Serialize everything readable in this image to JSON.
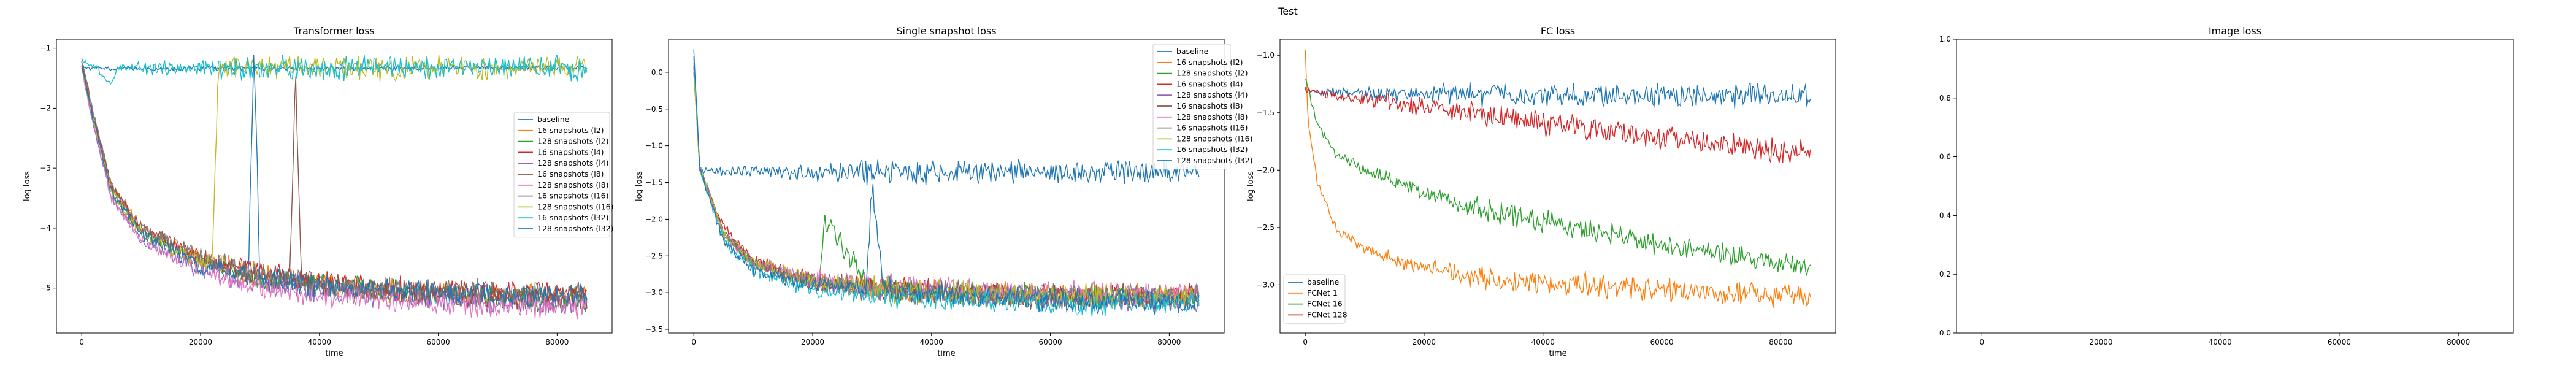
{
  "suptitle": "Test",
  "colors": {
    "blue": "#1f77b4",
    "orange": "#ff7f0e",
    "green": "#2ca02c",
    "red": "#d62728",
    "purple": "#9467bd",
    "brown": "#8c564b",
    "pink": "#e377c2",
    "gray": "#7f7f7f",
    "olive": "#bcbd22",
    "cyan": "#17becf"
  },
  "chart_data": [
    {
      "type": "line",
      "title": "Transformer loss",
      "xlabel": "time",
      "ylabel": "log loss",
      "xlim": [
        -4250,
        89250
      ],
      "ylim": [
        -5.75,
        -0.85
      ],
      "xticks": [
        0,
        20000,
        40000,
        60000,
        80000
      ],
      "yticks": [
        -1,
        -2,
        -3,
        -4,
        -5
      ],
      "legend_position": "center-right",
      "series": [
        {
          "name": "baseline",
          "color": "#1f77b4",
          "x": [
            0,
            1000,
            5000,
            20000,
            40000,
            60000,
            85000
          ],
          "y": [
            -1.3,
            -1.33,
            -1.34,
            -1.33,
            -1.34,
            -1.33,
            -1.33
          ]
        },
        {
          "name": "16 snapshots (l2)",
          "color": "#ff7f0e",
          "x": [
            0,
            2000,
            5000,
            10000,
            20000,
            30000,
            45000,
            60000,
            85000
          ],
          "y": [
            -1.2,
            -2.1,
            -3.3,
            -4.0,
            -4.5,
            -4.8,
            -5.0,
            -5.1,
            -5.15
          ]
        },
        {
          "name": "128 snapshots (l2)",
          "color": "#2ca02c",
          "x": [
            0,
            2000,
            5000,
            10000,
            20000,
            30000,
            45000,
            60000,
            85000
          ],
          "y": [
            -1.3,
            -2.2,
            -3.4,
            -4.1,
            -4.6,
            -4.85,
            -5.0,
            -5.1,
            -5.2
          ]
        },
        {
          "name": "16 snapshots (l4)",
          "color": "#d62728",
          "x": [
            0,
            2000,
            5000,
            10000,
            20000,
            30000,
            45000,
            60000,
            85000
          ],
          "y": [
            -1.2,
            -2.1,
            -3.3,
            -4.0,
            -4.5,
            -4.75,
            -4.95,
            -5.05,
            -5.1
          ]
        },
        {
          "name": "128 snapshots (l4)",
          "color": "#9467bd",
          "x": [
            0,
            2000,
            5000,
            10000,
            20000,
            30000,
            45000,
            60000,
            85000
          ],
          "y": [
            -1.3,
            -2.3,
            -3.5,
            -4.2,
            -4.7,
            -4.95,
            -5.1,
            -5.2,
            -5.3
          ]
        },
        {
          "name": "16 snapshots (l8)",
          "color": "#8c564b",
          "x": [
            0,
            2000,
            5000,
            10000,
            20000,
            30000,
            35000,
            36000,
            37000,
            45000,
            60000,
            85000
          ],
          "y": [
            -1.2,
            -2.2,
            -3.3,
            -4.0,
            -4.5,
            -4.8,
            -4.85,
            -1.45,
            -4.9,
            -5.0,
            -5.1,
            -5.15
          ]
        },
        {
          "name": "128 snapshots (l8)",
          "color": "#e377c2",
          "x": [
            0,
            2000,
            5000,
            10000,
            20000,
            30000,
            45000,
            60000,
            85000
          ],
          "y": [
            -1.3,
            -2.3,
            -3.5,
            -4.2,
            -4.7,
            -5.0,
            -5.15,
            -5.25,
            -5.35
          ]
        },
        {
          "name": "16 snapshots (l16)",
          "color": "#7f7f7f",
          "x": [
            0,
            2000,
            5000,
            10000,
            20000,
            30000,
            45000,
            60000,
            85000
          ],
          "y": [
            -1.2,
            -2.1,
            -3.3,
            -4.0,
            -4.5,
            -4.8,
            -5.0,
            -5.05,
            -5.1
          ]
        },
        {
          "name": "128 snapshots (l16)",
          "color": "#bcbd22",
          "x": [
            0,
            2000,
            5000,
            10000,
            20000,
            22000,
            23000,
            30000,
            45000,
            60000,
            85000
          ],
          "y": [
            -1.3,
            -2.2,
            -3.4,
            -4.1,
            -4.55,
            -4.6,
            -1.3,
            -1.32,
            -1.33,
            -1.34,
            -1.33
          ]
        },
        {
          "name": "16 snapshots (l32)",
          "color": "#17becf",
          "x": [
            0,
            2000,
            5000,
            6000,
            10000,
            20000,
            40000,
            60000,
            85000
          ],
          "y": [
            -1.2,
            -1.3,
            -1.6,
            -1.33,
            -1.33,
            -1.34,
            -1.33,
            -1.34,
            -1.33
          ]
        },
        {
          "name": "128 snapshots (l32)",
          "color": "#1f77b4",
          "x": [
            0,
            2000,
            5000,
            10000,
            20000,
            28000,
            29000,
            30000,
            45000,
            60000,
            85000
          ],
          "y": [
            -1.3,
            -2.2,
            -3.4,
            -4.1,
            -4.6,
            -4.8,
            -1.0,
            -4.85,
            -5.0,
            -5.1,
            -5.1
          ]
        }
      ]
    },
    {
      "type": "line",
      "title": "Single snapshot loss",
      "xlabel": "time",
      "ylabel": "log loss",
      "xlim": [
        -4250,
        89250
      ],
      "ylim": [
        -3.55,
        0.45
      ],
      "xticks": [
        0,
        20000,
        40000,
        60000,
        80000
      ],
      "yticks": [
        0.0,
        -0.5,
        -1.0,
        -1.5,
        -2.0,
        -2.5,
        -3.0,
        -3.5
      ],
      "legend_position": "upper-right",
      "series": [
        {
          "name": "baseline",
          "color": "#1f77b4",
          "x": [
            0,
            1000,
            5000,
            20000,
            40000,
            60000,
            85000
          ],
          "y": [
            0.2,
            -1.35,
            -1.35,
            -1.36,
            -1.35,
            -1.36,
            -1.35
          ]
        },
        {
          "name": "16 snapshots (l2)",
          "color": "#ff7f0e",
          "x": [
            0,
            1000,
            5000,
            10000,
            20000,
            30000,
            45000,
            60000,
            85000
          ],
          "y": [
            0.1,
            -1.3,
            -2.2,
            -2.6,
            -2.85,
            -2.95,
            -3.0,
            -3.05,
            -3.05
          ]
        },
        {
          "name": "128 snapshots (l2)",
          "color": "#2ca02c",
          "x": [
            0,
            1000,
            5000,
            10000,
            20000,
            21000,
            22000,
            30000,
            45000,
            60000,
            85000
          ],
          "y": [
            0.0,
            -1.3,
            -2.2,
            -2.6,
            -2.85,
            -2.9,
            -2.0,
            -2.95,
            -3.0,
            -3.05,
            -3.05
          ]
        },
        {
          "name": "16 snapshots (l4)",
          "color": "#d62728",
          "x": [
            0,
            1000,
            5000,
            10000,
            20000,
            30000,
            45000,
            60000,
            85000
          ],
          "y": [
            0.1,
            -1.3,
            -2.1,
            -2.55,
            -2.85,
            -2.95,
            -3.0,
            -3.05,
            -3.05
          ]
        },
        {
          "name": "128 snapshots (l4)",
          "color": "#9467bd",
          "x": [
            0,
            1000,
            5000,
            10000,
            20000,
            30000,
            45000,
            60000,
            85000
          ],
          "y": [
            0.0,
            -1.3,
            -2.2,
            -2.6,
            -2.85,
            -2.95,
            -3.0,
            -3.05,
            -3.1
          ]
        },
        {
          "name": "16 snapshots (l8)",
          "color": "#8c564b",
          "x": [
            0,
            1000,
            5000,
            10000,
            20000,
            30000,
            45000,
            60000,
            85000
          ],
          "y": [
            0.1,
            -1.3,
            -2.2,
            -2.6,
            -2.85,
            -2.95,
            -3.0,
            -3.05,
            -3.05
          ]
        },
        {
          "name": "128 snapshots (l8)",
          "color": "#e377c2",
          "x": [
            0,
            1000,
            5000,
            10000,
            20000,
            30000,
            45000,
            60000,
            85000
          ],
          "y": [
            0.0,
            -1.3,
            -2.2,
            -2.6,
            -2.8,
            -2.9,
            -2.95,
            -3.0,
            -3.0
          ]
        },
        {
          "name": "16 snapshots (l16)",
          "color": "#7f7f7f",
          "x": [
            0,
            1000,
            5000,
            10000,
            20000,
            30000,
            45000,
            60000,
            85000
          ],
          "y": [
            0.1,
            -1.3,
            -2.2,
            -2.6,
            -2.85,
            -2.95,
            -3.0,
            -3.05,
            -3.05
          ]
        },
        {
          "name": "128 snapshots (l16)",
          "color": "#bcbd22",
          "x": [
            0,
            1000,
            5000,
            10000,
            20000,
            30000,
            45000,
            60000,
            85000
          ],
          "y": [
            0.0,
            -1.3,
            -2.2,
            -2.6,
            -2.85,
            -2.95,
            -3.0,
            -3.05,
            -3.05
          ]
        },
        {
          "name": "16 snapshots (l32)",
          "color": "#17becf",
          "x": [
            0,
            1000,
            5000,
            10000,
            20000,
            30000,
            45000,
            60000,
            85000
          ],
          "y": [
            0.2,
            -1.3,
            -2.3,
            -2.7,
            -2.95,
            -3.05,
            -3.1,
            -3.15,
            -3.15
          ]
        },
        {
          "name": "128 snapshots (l32)",
          "color": "#1f77b4",
          "x": [
            0,
            1000,
            5000,
            10000,
            20000,
            29000,
            30000,
            32000,
            45000,
            60000,
            85000
          ],
          "y": [
            0.3,
            -1.3,
            -2.3,
            -2.7,
            -2.9,
            -2.95,
            -1.55,
            -2.95,
            -3.05,
            -3.1,
            -3.15
          ]
        }
      ]
    },
    {
      "type": "line",
      "title": "FC loss",
      "xlabel": "time",
      "ylabel": "log loss",
      "xlim": [
        -4250,
        89250
      ],
      "ylim": [
        -3.42,
        -0.86
      ],
      "xticks": [
        0,
        20000,
        40000,
        60000,
        80000
      ],
      "yticks": [
        -1.0,
        -1.5,
        -2.0,
        -2.5,
        -3.0
      ],
      "legend_position": "lower-left",
      "series": [
        {
          "name": "baseline",
          "color": "#1f77b4",
          "x": [
            0,
            2000,
            10000,
            20000,
            40000,
            60000,
            85000
          ],
          "y": [
            -1.3,
            -1.32,
            -1.33,
            -1.34,
            -1.35,
            -1.35,
            -1.35
          ]
        },
        {
          "name": "FCNet 1",
          "color": "#ff7f0e",
          "x": [
            0,
            500,
            2000,
            5000,
            10000,
            20000,
            30000,
            45000,
            60000,
            85000
          ],
          "y": [
            -0.95,
            -1.6,
            -2.1,
            -2.5,
            -2.7,
            -2.85,
            -2.95,
            -3.0,
            -3.05,
            -3.1
          ]
        },
        {
          "name": "FCNet 16",
          "color": "#2ca02c",
          "x": [
            0,
            2000,
            5000,
            10000,
            20000,
            30000,
            45000,
            60000,
            85000
          ],
          "y": [
            -1.2,
            -1.6,
            -1.85,
            -2.0,
            -2.2,
            -2.35,
            -2.5,
            -2.65,
            -2.85
          ]
        },
        {
          "name": "FCNet 128",
          "color": "#d62728",
          "x": [
            0,
            2000,
            5000,
            10000,
            20000,
            30000,
            45000,
            60000,
            85000
          ],
          "y": [
            -1.3,
            -1.32,
            -1.35,
            -1.38,
            -1.45,
            -1.52,
            -1.62,
            -1.72,
            -1.85
          ]
        }
      ]
    },
    {
      "type": "line",
      "title": "Image loss",
      "xlabel": "",
      "ylabel": "",
      "xlim": [
        -4250,
        89250
      ],
      "ylim": [
        0.0,
        1.0
      ],
      "xticks": [
        0,
        20000,
        40000,
        60000,
        80000
      ],
      "yticks": [
        0.0,
        0.2,
        0.4,
        0.6,
        0.8,
        1.0
      ],
      "legend_position": "upper-right",
      "series": []
    }
  ]
}
